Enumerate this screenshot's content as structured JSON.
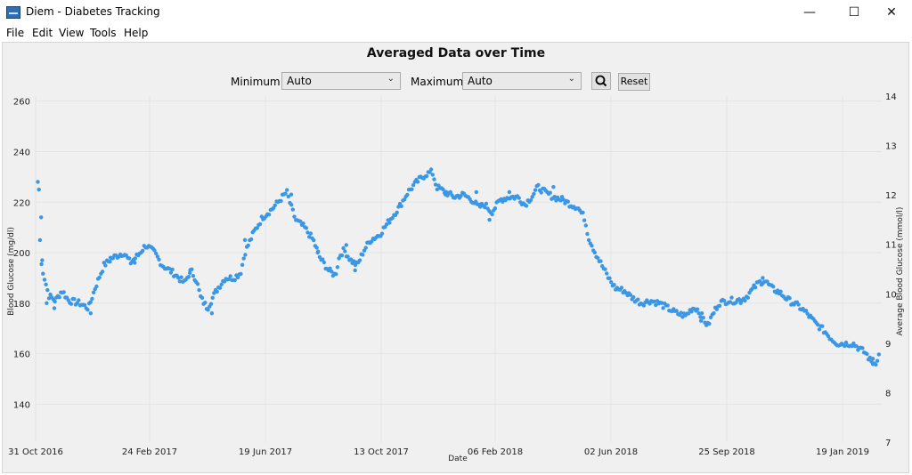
{
  "window": {
    "title": "Diem - Diabetes Tracking",
    "minimize_glyph": "—",
    "maximize_glyph": "☐",
    "close_glyph": "✕"
  },
  "menu": [
    "File",
    "Edit",
    "View",
    "Tools",
    "Help"
  ],
  "controls": {
    "minimum_label": "Minimum",
    "minimum_value": "Auto",
    "maximum_label": "Maximum",
    "maximum_value": "Auto",
    "reset_label": "Reset",
    "zoom_icon": "magnifier-icon"
  },
  "chart_data": {
    "type": "scatter",
    "title": "Averaged Data over Time",
    "xlabel": "Date",
    "ylabel_left": "Blood Glucose (mg/dl)",
    "ylabel_right": "Average Blood Glucose (mmol/l)",
    "x_ticks": [
      "31 Oct 2016",
      "24 Feb 2017",
      "19 Jun 2017",
      "13 Oct 2017",
      "06 Feb 2018",
      "02 Jun 2018",
      "25 Sep 2018",
      "19 Jan 2019"
    ],
    "left_ticks": [
      140,
      160,
      180,
      200,
      220,
      240,
      260
    ],
    "right_ticks": [
      7,
      8,
      9,
      10,
      11,
      12,
      13,
      14
    ],
    "ylim_left": [
      125,
      262
    ],
    "ylim_right": [
      7,
      14
    ],
    "grid": true,
    "point_color": "#3a97e6",
    "series_trend": [
      [
        0,
        204
      ],
      [
        1,
        229
      ],
      [
        3,
        214
      ],
      [
        5,
        196
      ],
      [
        8,
        190
      ],
      [
        12,
        183
      ],
      [
        18,
        181
      ],
      [
        24,
        185
      ],
      [
        30,
        181
      ],
      [
        40,
        180
      ],
      [
        48,
        178
      ],
      [
        54,
        186
      ],
      [
        62,
        195
      ],
      [
        70,
        198
      ],
      [
        80,
        200
      ],
      [
        86,
        196
      ],
      [
        93,
        199
      ],
      [
        100,
        203
      ],
      [
        108,
        200
      ],
      [
        115,
        195
      ],
      [
        125,
        192
      ],
      [
        135,
        188
      ],
      [
        141,
        193
      ],
      [
        146,
        189
      ],
      [
        150,
        182
      ],
      [
        156,
        178
      ],
      [
        164,
        185
      ],
      [
        172,
        190
      ],
      [
        180,
        190
      ],
      [
        186,
        192
      ],
      [
        190,
        200
      ],
      [
        198,
        208
      ],
      [
        206,
        214
      ],
      [
        214,
        217
      ],
      [
        222,
        221
      ],
      [
        228,
        224
      ],
      [
        232,
        218
      ],
      [
        236,
        213
      ],
      [
        244,
        210
      ],
      [
        252,
        205
      ],
      [
        258,
        198
      ],
      [
        266,
        193
      ],
      [
        272,
        191
      ],
      [
        276,
        199
      ],
      [
        280,
        201
      ],
      [
        286,
        197
      ],
      [
        292,
        195
      ],
      [
        298,
        201
      ],
      [
        304,
        205
      ],
      [
        312,
        207
      ],
      [
        320,
        212
      ],
      [
        330,
        218
      ],
      [
        338,
        224
      ],
      [
        346,
        228
      ],
      [
        354,
        231
      ],
      [
        360,
        232
      ],
      [
        364,
        226
      ],
      [
        372,
        224
      ],
      [
        380,
        222
      ],
      [
        388,
        223
      ],
      [
        396,
        221
      ],
      [
        402,
        218
      ],
      [
        408,
        219
      ],
      [
        414,
        216
      ],
      [
        422,
        221
      ],
      [
        430,
        222
      ],
      [
        438,
        222
      ],
      [
        444,
        219
      ],
      [
        450,
        222
      ],
      [
        456,
        226
      ],
      [
        462,
        224
      ],
      [
        470,
        222
      ],
      [
        478,
        221
      ],
      [
        486,
        219
      ],
      [
        492,
        218
      ],
      [
        498,
        214
      ],
      [
        502,
        206
      ],
      [
        508,
        200
      ],
      [
        514,
        195
      ],
      [
        520,
        190
      ],
      [
        526,
        186
      ],
      [
        534,
        185
      ],
      [
        542,
        182
      ],
      [
        550,
        180
      ],
      [
        558,
        181
      ],
      [
        566,
        180
      ],
      [
        574,
        178
      ],
      [
        582,
        176
      ],
      [
        590,
        175
      ],
      [
        596,
        178
      ],
      [
        600,
        178
      ],
      [
        606,
        174
      ],
      [
        610,
        171
      ],
      [
        614,
        175
      ],
      [
        620,
        180
      ],
      [
        628,
        181
      ],
      [
        636,
        181
      ],
      [
        644,
        182
      ],
      [
        650,
        185
      ],
      [
        656,
        188
      ],
      [
        662,
        189
      ],
      [
        668,
        186
      ],
      [
        676,
        184
      ],
      [
        684,
        181
      ],
      [
        692,
        179
      ],
      [
        700,
        176
      ],
      [
        708,
        172
      ],
      [
        716,
        169
      ],
      [
        722,
        166
      ],
      [
        728,
        164
      ],
      [
        734,
        164
      ],
      [
        742,
        164
      ],
      [
        748,
        162
      ],
      [
        754,
        160
      ],
      [
        758,
        157
      ],
      [
        762,
        156
      ],
      [
        766,
        160
      ]
    ],
    "scatter_outliers": [
      [
        2,
        228
      ],
      [
        3,
        225
      ],
      [
        5,
        214
      ],
      [
        6,
        197
      ],
      [
        10,
        180
      ],
      [
        17,
        178
      ],
      [
        50,
        176
      ],
      [
        68,
        198
      ],
      [
        90,
        196
      ],
      [
        140,
        192
      ],
      [
        160,
        176
      ],
      [
        190,
        205
      ],
      [
        232,
        223
      ],
      [
        256,
        200
      ],
      [
        282,
        203
      ],
      [
        290,
        193
      ],
      [
        372,
        223
      ],
      [
        400,
        224
      ],
      [
        412,
        213
      ],
      [
        430,
        224
      ],
      [
        470,
        226
      ],
      [
        604,
        173
      ],
      [
        640,
        180
      ],
      [
        660,
        190
      ],
      [
        760,
        158
      ]
    ]
  }
}
